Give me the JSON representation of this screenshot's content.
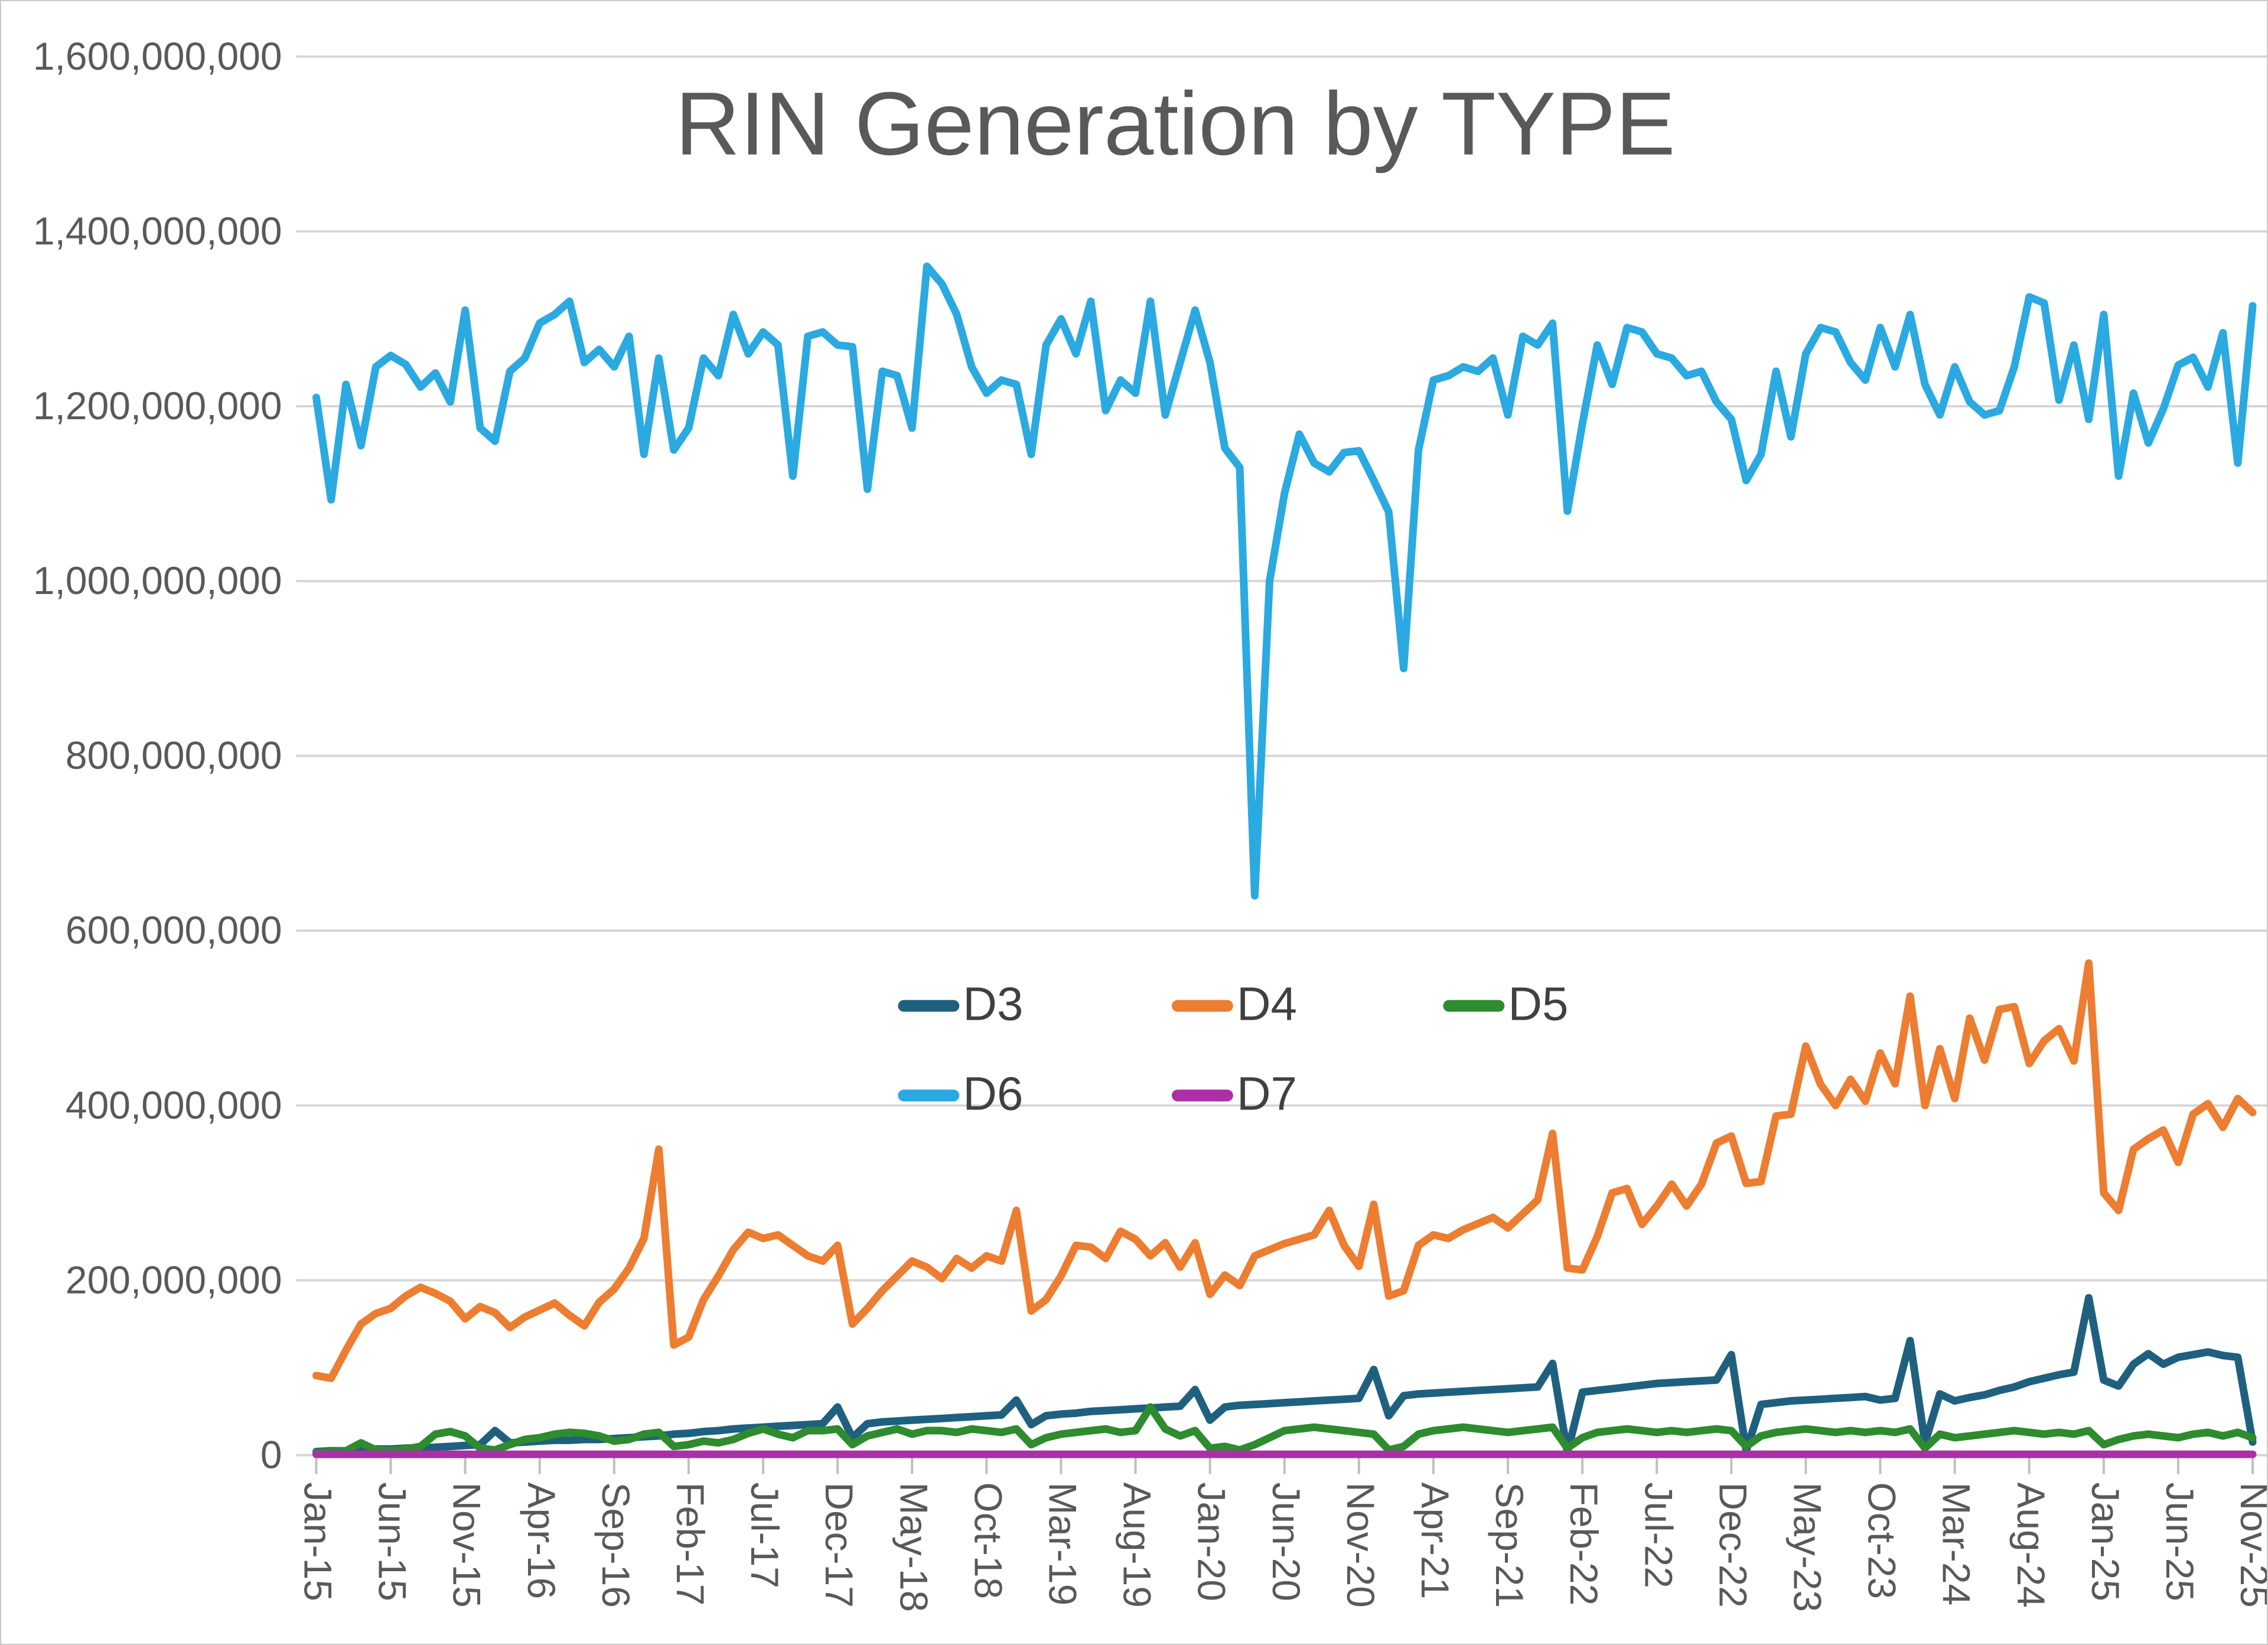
{
  "window": {
    "background": "#ffffff",
    "border_color": "#c9c9c9"
  },
  "chart_data": {
    "type": "line",
    "title": "RIN Generation by TYPE",
    "title_color": "#595959",
    "xlabel": "",
    "ylabel": "",
    "values_unit": "millions of RINs (axis shown in absolute units)",
    "ylim": [
      0,
      1600000000
    ],
    "grid": true,
    "gridline_color": "#d6d6d6",
    "axis_text_color": "#595959",
    "legend_position": "center-middle, two rows",
    "y_ticks_values": [
      0,
      200000000,
      400000000,
      600000000,
      800000000,
      1000000000,
      1200000000,
      1400000000,
      1600000000
    ],
    "y_tick_labels": [
      "0",
      "200,000,000",
      "400,000,000",
      "600,000,000",
      "800,000,000",
      "1,000,000,000",
      "1,200,000,000",
      "1,400,000,000",
      "1,600,000,000"
    ],
    "x_tick_interval_months": 5,
    "x_tick_labels": [
      "Jan-15",
      "Jun-15",
      "Nov-15",
      "Apr-16",
      "Sep-16",
      "Feb-17",
      "Jul-17",
      "Dec-17",
      "May-18",
      "Oct-18",
      "Mar-19",
      "Aug-19",
      "Jan-20",
      "Jun-20",
      "Nov-20",
      "Apr-21",
      "Sep-21",
      "Feb-22",
      "Jul-22",
      "Dec-22",
      "May-23",
      "Oct-23",
      "Mar-24",
      "Aug-24",
      "Jan-25",
      "Jun-25",
      "Nov-25"
    ],
    "categories": [
      "Jan-15",
      "Feb-15",
      "Mar-15",
      "Apr-15",
      "May-15",
      "Jun-15",
      "Jul-15",
      "Aug-15",
      "Sep-15",
      "Oct-15",
      "Nov-15",
      "Dec-15",
      "Jan-16",
      "Feb-16",
      "Mar-16",
      "Apr-16",
      "May-16",
      "Jun-16",
      "Jul-16",
      "Aug-16",
      "Sep-16",
      "Oct-16",
      "Nov-16",
      "Dec-16",
      "Jan-17",
      "Feb-17",
      "Mar-17",
      "Apr-17",
      "May-17",
      "Jun-17",
      "Jul-17",
      "Aug-17",
      "Sep-17",
      "Oct-17",
      "Nov-17",
      "Dec-17",
      "Jan-18",
      "Feb-18",
      "Mar-18",
      "Apr-18",
      "May-18",
      "Jun-18",
      "Jul-18",
      "Aug-18",
      "Sep-18",
      "Oct-18",
      "Nov-18",
      "Dec-18",
      "Jan-19",
      "Feb-19",
      "Mar-19",
      "Apr-19",
      "May-19",
      "Jun-19",
      "Jul-19",
      "Aug-19",
      "Sep-19",
      "Oct-19",
      "Nov-19",
      "Dec-19",
      "Jan-20",
      "Feb-20",
      "Mar-20",
      "Apr-20",
      "May-20",
      "Jun-20",
      "Jul-20",
      "Aug-20",
      "Sep-20",
      "Oct-20",
      "Nov-20",
      "Dec-20",
      "Jan-21",
      "Feb-21",
      "Mar-21",
      "Apr-21",
      "May-21",
      "Jun-21",
      "Jul-21",
      "Aug-21",
      "Sep-21",
      "Oct-21",
      "Nov-21",
      "Dec-21",
      "Jan-22",
      "Feb-22",
      "Mar-22",
      "Apr-22",
      "May-22",
      "Jun-22",
      "Jul-22",
      "Aug-22",
      "Sep-22",
      "Oct-22",
      "Nov-22",
      "Dec-22",
      "Jan-23",
      "Feb-23",
      "Mar-23",
      "Apr-23",
      "May-23",
      "Jun-23",
      "Jul-23",
      "Aug-23",
      "Sep-23",
      "Oct-23",
      "Nov-23",
      "Dec-23",
      "Jan-24",
      "Feb-24",
      "Mar-24",
      "Apr-24",
      "May-24",
      "Jun-24",
      "Jul-24",
      "Aug-24",
      "Sep-24",
      "Oct-24",
      "Nov-24",
      "Dec-24",
      "Jan-25",
      "Feb-25",
      "Mar-25",
      "Apr-25",
      "May-25",
      "Jun-25",
      "Jul-25",
      "Aug-25",
      "Sep-25",
      "Oct-25",
      "Nov-25"
    ],
    "series": [
      {
        "name": "D3",
        "color": "#1f607f",
        "values_millions": [
          4,
          5,
          5,
          6,
          7,
          7,
          8,
          8,
          9,
          10,
          11,
          12,
          28,
          14,
          15,
          16,
          17,
          17,
          18,
          18,
          19,
          20,
          21,
          22,
          24,
          25,
          27,
          28,
          30,
          31,
          32,
          33,
          34,
          35,
          36,
          55,
          20,
          36,
          38,
          39,
          40,
          41,
          42,
          43,
          44,
          45,
          46,
          63,
          35,
          45,
          47,
          48,
          50,
          51,
          52,
          53,
          54,
          55,
          56,
          75,
          40,
          55,
          57,
          58,
          59,
          60,
          61,
          62,
          63,
          64,
          65,
          98,
          45,
          68,
          70,
          71,
          72,
          73,
          74,
          75,
          76,
          77,
          78,
          105,
          3,
          72,
          74,
          76,
          78,
          80,
          82,
          83,
          84,
          85,
          86,
          115,
          5,
          58,
          60,
          62,
          63,
          64,
          65,
          66,
          67,
          63,
          65,
          131,
          14,
          70,
          62,
          66,
          69,
          74,
          78,
          84,
          88,
          92,
          95,
          180,
          86,
          79,
          104,
          116,
          104,
          112,
          115,
          118,
          114,
          112,
          15
        ]
      },
      {
        "name": "D4",
        "color": "#ed7d31",
        "values_millions": [
          91,
          88,
          120,
          150,
          162,
          168,
          182,
          192,
          185,
          176,
          156,
          170,
          163,
          146,
          158,
          166,
          174,
          160,
          148,
          175,
          190,
          214,
          248,
          350,
          126,
          135,
          178,
          205,
          235,
          255,
          248,
          252,
          240,
          228,
          222,
          240,
          150,
          168,
          188,
          205,
          222,
          215,
          202,
          225,
          214,
          228,
          222,
          280,
          165,
          178,
          205,
          240,
          238,
          225,
          256,
          247,
          228,
          243,
          215,
          243,
          184,
          206,
          194,
          228,
          235,
          242,
          247,
          252,
          280,
          240,
          216,
          287,
          182,
          188,
          240,
          252,
          248,
          258,
          265,
          272,
          260,
          276,
          292,
          368,
          214,
          212,
          250,
          300,
          305,
          264,
          285,
          310,
          285,
          310,
          357,
          365,
          311,
          313,
          388,
          390,
          468,
          424,
          400,
          430,
          405,
          460,
          425,
          525,
          400,
          465,
          408,
          500,
          452,
          510,
          513,
          448,
          474,
          488,
          451,
          563,
          300,
          280,
          350,
          362,
          372,
          335,
          390,
          402,
          375,
          408,
          392
        ]
      },
      {
        "name": "D5",
        "color": "#2e8b2e",
        "values_millions": [
          3,
          4,
          5,
          14,
          6,
          5,
          7,
          10,
          24,
          27,
          22,
          8,
          6,
          12,
          18,
          20,
          24,
          26,
          25,
          22,
          16,
          18,
          24,
          26,
          10,
          12,
          16,
          14,
          18,
          25,
          30,
          24,
          20,
          28,
          28,
          30,
          12,
          22,
          26,
          30,
          24,
          28,
          28,
          26,
          30,
          28,
          26,
          30,
          12,
          20,
          24,
          26,
          28,
          30,
          26,
          28,
          55,
          30,
          22,
          28,
          8,
          10,
          6,
          12,
          20,
          28,
          30,
          32,
          30,
          28,
          26,
          24,
          6,
          10,
          24,
          28,
          30,
          32,
          30,
          28,
          26,
          28,
          30,
          32,
          8,
          20,
          26,
          28,
          30,
          28,
          26,
          28,
          26,
          28,
          30,
          28,
          10,
          22,
          26,
          28,
          30,
          28,
          26,
          28,
          26,
          28,
          26,
          30,
          8,
          24,
          20,
          22,
          24,
          26,
          28,
          26,
          24,
          26,
          24,
          28,
          12,
          18,
          22,
          24,
          22,
          20,
          24,
          26,
          22,
          26,
          20
        ]
      },
      {
        "name": "D6",
        "color": "#2ba9e1",
        "values_millions": [
          1210,
          1093,
          1225,
          1155,
          1245,
          1258,
          1248,
          1222,
          1238,
          1205,
          1310,
          1175,
          1160,
          1240,
          1255,
          1295,
          1305,
          1320,
          1250,
          1265,
          1245,
          1280,
          1145,
          1255,
          1150,
          1175,
          1255,
          1235,
          1305,
          1260,
          1285,
          1270,
          1120,
          1280,
          1285,
          1270,
          1268,
          1105,
          1240,
          1235,
          1175,
          1360,
          1340,
          1305,
          1245,
          1215,
          1230,
          1225,
          1145,
          1270,
          1300,
          1260,
          1320,
          1195,
          1230,
          1215,
          1320,
          1190,
          1250,
          1310,
          1250,
          1152,
          1130,
          640,
          1000,
          1100,
          1168,
          1135,
          1125,
          1147,
          1149,
          1115,
          1079,
          900,
          1150,
          1230,
          1235,
          1245,
          1240,
          1255,
          1190,
          1280,
          1270,
          1295,
          1080,
          1180,
          1270,
          1225,
          1290,
          1285,
          1260,
          1255,
          1235,
          1240,
          1205,
          1185,
          1115,
          1145,
          1240,
          1165,
          1260,
          1290,
          1285,
          1250,
          1230,
          1290,
          1245,
          1305,
          1225,
          1190,
          1245,
          1205,
          1190,
          1195,
          1245,
          1325,
          1318,
          1207,
          1270,
          1185,
          1305,
          1120,
          1215,
          1158,
          1197,
          1247,
          1256,
          1222,
          1284,
          1135,
          1315
        ]
      },
      {
        "name": "D7",
        "color": "#ac2fa8",
        "values_millions": [
          1,
          1,
          1,
          1,
          1,
          1,
          1,
          1,
          1,
          1,
          1,
          1,
          1,
          1,
          1,
          1,
          1,
          1,
          1,
          1,
          1,
          1,
          1,
          1,
          1,
          1,
          1,
          1,
          1,
          1,
          1,
          1,
          1,
          1,
          1,
          1,
          1,
          1,
          1,
          1,
          1,
          1,
          1,
          1,
          1,
          1,
          1,
          1,
          1,
          1,
          1,
          1,
          1,
          1,
          1,
          1,
          1,
          1,
          1,
          1,
          1,
          1,
          1,
          1,
          1,
          1,
          1,
          1,
          1,
          1,
          1,
          1,
          1,
          1,
          1,
          1,
          1,
          1,
          1,
          1,
          1,
          1,
          1,
          1,
          1,
          1,
          1,
          1,
          1,
          1,
          1,
          1,
          1,
          1,
          1,
          1,
          1,
          1,
          1,
          1,
          1,
          1,
          1,
          1,
          1,
          1,
          1,
          1,
          1,
          1,
          1,
          1,
          1,
          1,
          1,
          1,
          1,
          1,
          1,
          1,
          1,
          1,
          1,
          1,
          1,
          1,
          1,
          1,
          1,
          1,
          1
        ]
      }
    ]
  }
}
